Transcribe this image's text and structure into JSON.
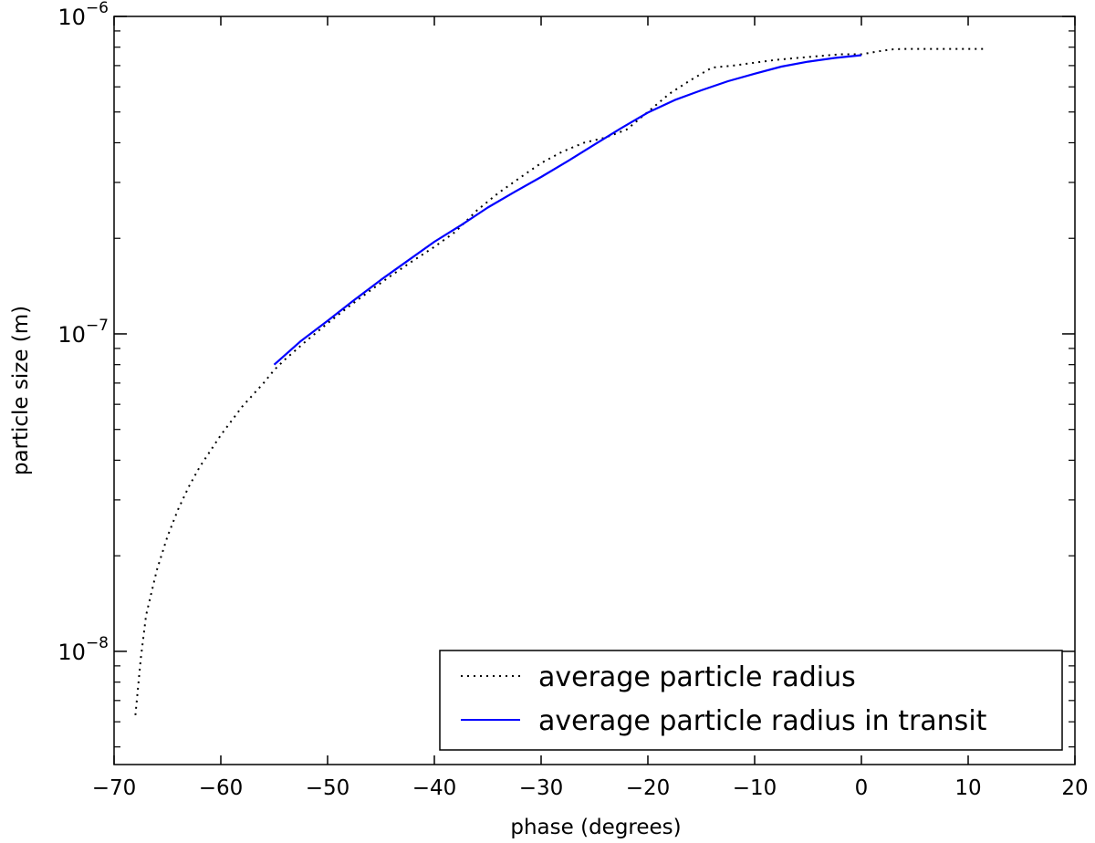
{
  "chart_data": {
    "type": "line",
    "title": "",
    "xlabel": "phase (degrees)",
    "ylabel": "particle size (m)",
    "xlim": [
      -70,
      20
    ],
    "ylim": [
      4.4e-09,
      1e-06
    ],
    "yscale": "log",
    "x_ticks": [
      -70,
      -60,
      -50,
      -40,
      -30,
      -20,
      -10,
      0,
      10,
      20
    ],
    "x_tick_labels": [
      "−70",
      "−60",
      "−50",
      "−40",
      "−30",
      "−20",
      "−10",
      "0",
      "10",
      "20"
    ],
    "y_ticks": [
      1e-08,
      1e-07,
      1e-06
    ],
    "y_tick_labels": [
      {
        "base": "10",
        "exp": "−8"
      },
      {
        "base": "10",
        "exp": "−7"
      },
      {
        "base": "10",
        "exp": "−6"
      }
    ],
    "grid": false,
    "legend_position": "lower-right",
    "series": [
      {
        "name": "average particle radius",
        "color": "#000000",
        "style": "dotted",
        "x": [
          -68,
          -67.5,
          -67,
          -66,
          -65,
          -64,
          -63,
          -62,
          -60,
          -58,
          -56,
          -55,
          -54,
          -52,
          -50,
          -48,
          -46,
          -44,
          -42,
          -40,
          -38,
          -36,
          -34,
          -32,
          -30,
          -28,
          -26,
          -24,
          -22,
          -20,
          -18,
          -16,
          -14,
          -12,
          -10,
          -8,
          -6,
          -4,
          -2,
          0,
          1,
          2,
          3,
          4,
          6,
          8,
          10,
          11.5
        ],
        "y": [
          6.3e-09,
          9.5e-09,
          1.3e-08,
          1.8e-08,
          2.3e-08,
          2.8e-08,
          3.3e-08,
          3.8e-08,
          4.8e-08,
          5.9e-08,
          7e-08,
          7.7e-08,
          8.3e-08,
          9.5e-08,
          1.08e-07,
          1.22e-07,
          1.37e-07,
          1.53e-07,
          1.7e-07,
          1.88e-07,
          2.1e-07,
          2.45e-07,
          2.78e-07,
          3.1e-07,
          3.45e-07,
          3.75e-07,
          4e-07,
          4.15e-07,
          4.4e-07,
          5e-07,
          5.7e-07,
          6.3e-07,
          6.9e-07,
          7e-07,
          7.15e-07,
          7.3e-07,
          7.4e-07,
          7.5e-07,
          7.6e-07,
          7.6e-07,
          7.7e-07,
          7.8e-07,
          7.88e-07,
          7.9e-07,
          7.9e-07,
          7.9e-07,
          7.9e-07,
          7.9e-07
        ]
      },
      {
        "name": "average particle radius in transit",
        "color": "#0000ff",
        "style": "solid",
        "x": [
          -55,
          -52.5,
          -50,
          -47.5,
          -45,
          -42.5,
          -40,
          -37.5,
          -35,
          -32.5,
          -30,
          -27.5,
          -25,
          -22.5,
          -20,
          -17.5,
          -15,
          -12.5,
          -10,
          -7.5,
          -5,
          -2.5,
          0
        ],
        "y": [
          8e-08,
          9.5e-08,
          1.1e-07,
          1.28e-07,
          1.48e-07,
          1.7e-07,
          1.95e-07,
          2.2e-07,
          2.5e-07,
          2.8e-07,
          3.12e-07,
          3.5e-07,
          3.95e-07,
          4.45e-07,
          4.98e-07,
          5.45e-07,
          5.85e-07,
          6.25e-07,
          6.6e-07,
          6.95e-07,
          7.2e-07,
          7.4e-07,
          7.55e-07
        ]
      }
    ]
  }
}
